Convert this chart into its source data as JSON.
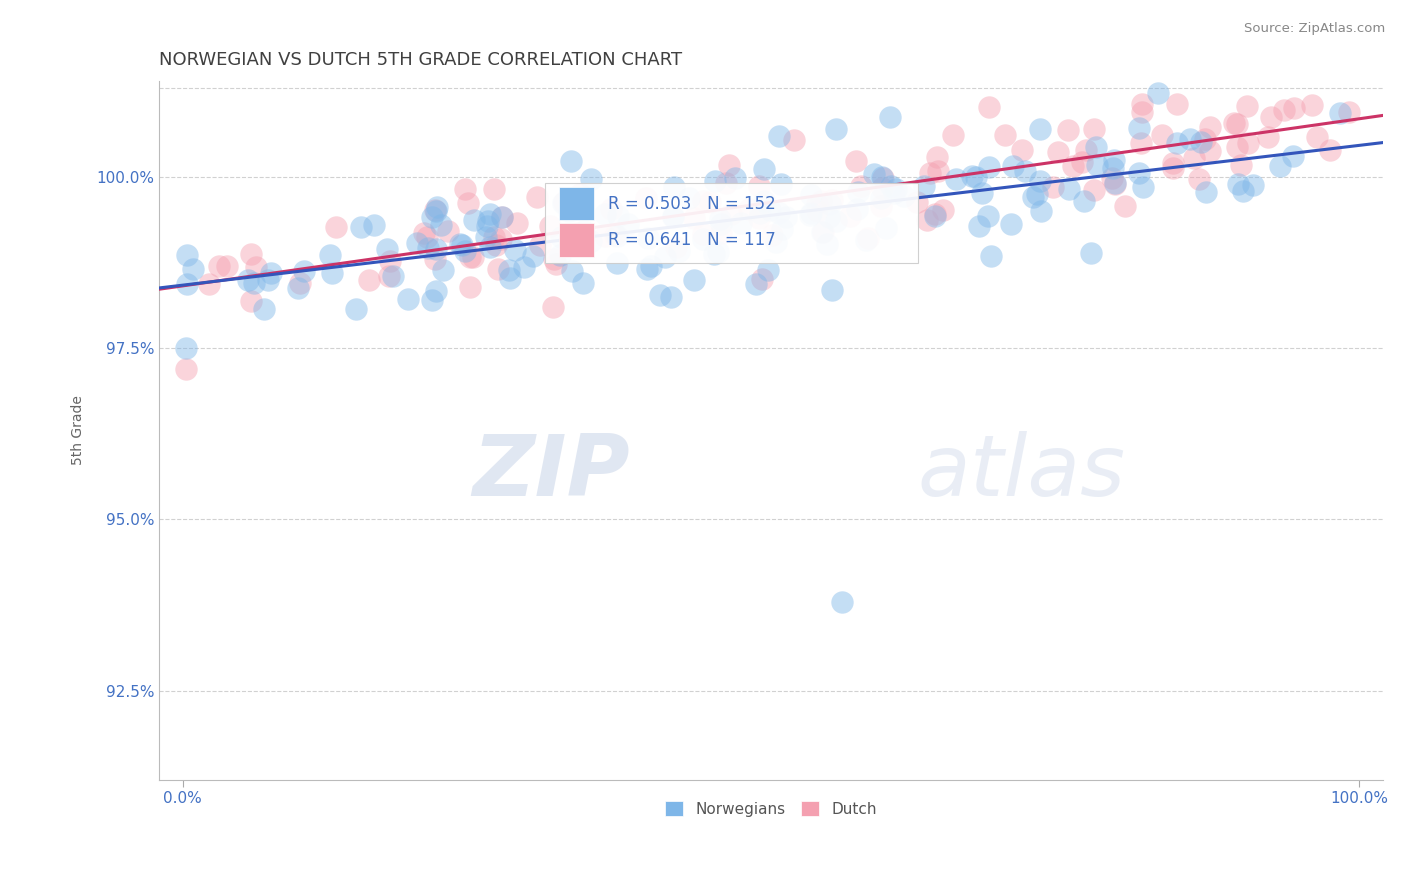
{
  "title": "NORWEGIAN VS DUTCH 5TH GRADE CORRELATION CHART",
  "source": "Source: ZipAtlas.com",
  "ylabel": "5th Grade",
  "xlim": [
    -2.0,
    102.0
  ],
  "ylim": [
    91.2,
    101.4
  ],
  "yticks": [
    92.5,
    95.0,
    97.5,
    100.0
  ],
  "ytick_labels": [
    "92.5%",
    "95.0%",
    "97.5%",
    "100.0%"
  ],
  "xticks": [
    0.0,
    100.0
  ],
  "xtick_labels": [
    "0.0%",
    "100.0%"
  ],
  "norwegian_color": "#7EB6E8",
  "dutch_color": "#F4A0B0",
  "norwegian_line_color": "#3355BB",
  "dutch_line_color": "#CC3366",
  "legend_label_1": "Norwegians",
  "legend_label_2": "Dutch",
  "R_norwegian": 0.503,
  "N_norwegian": 152,
  "R_dutch": 0.641,
  "N_dutch": 117,
  "background_color": "#ffffff",
  "grid_color": "#cccccc",
  "title_color": "#404040",
  "watermark_zip": "ZIP",
  "watermark_atlas": "atlas",
  "tick_color": "#4472C4"
}
